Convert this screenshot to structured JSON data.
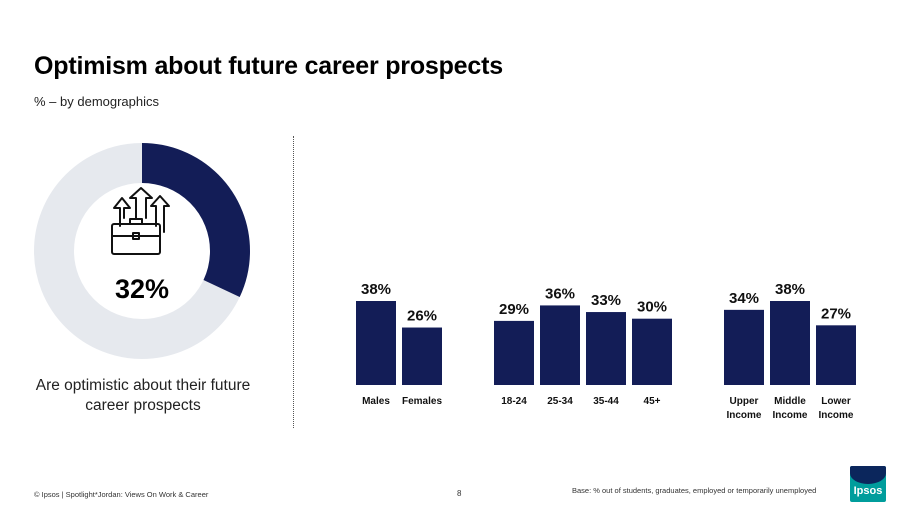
{
  "header": {
    "title": "Optimism about future career prospects",
    "subtitle": "% – by demographics"
  },
  "donut": {
    "value_label": "32%",
    "value": 32,
    "caption": "Are optimistic about their future career prospects",
    "icon": "briefcase-arrows-icon"
  },
  "chart_data": [
    {
      "type": "bar",
      "group": "gender",
      "categories": [
        "Males",
        "Females"
      ],
      "values": [
        38,
        26
      ],
      "value_labels": [
        "38%",
        "26%"
      ]
    },
    {
      "type": "bar",
      "group": "age",
      "categories": [
        "18-24",
        "25-34",
        "35-44",
        "45+"
      ],
      "values": [
        29,
        36,
        33,
        30
      ],
      "value_labels": [
        "29%",
        "36%",
        "33%",
        "30%"
      ]
    },
    {
      "type": "bar",
      "group": "income",
      "categories": [
        "Upper Income",
        "Middle Income",
        "Lower Income"
      ],
      "values": [
        34,
        38,
        27
      ],
      "value_labels": [
        "34%",
        "38%",
        "27%"
      ]
    }
  ],
  "footer": {
    "source": "© Ipsos | Spotlight*Jordan: Views On Work & Career",
    "page": "8",
    "base": "Base: % out of students, graduates, employed or temporarily unemployed",
    "logo_text": "Ipsos"
  },
  "colors": {
    "bar": "#131d57",
    "donut_fill": "#131d57",
    "donut_track": "#e6e9ee",
    "logo_bg": "#009d9c"
  }
}
